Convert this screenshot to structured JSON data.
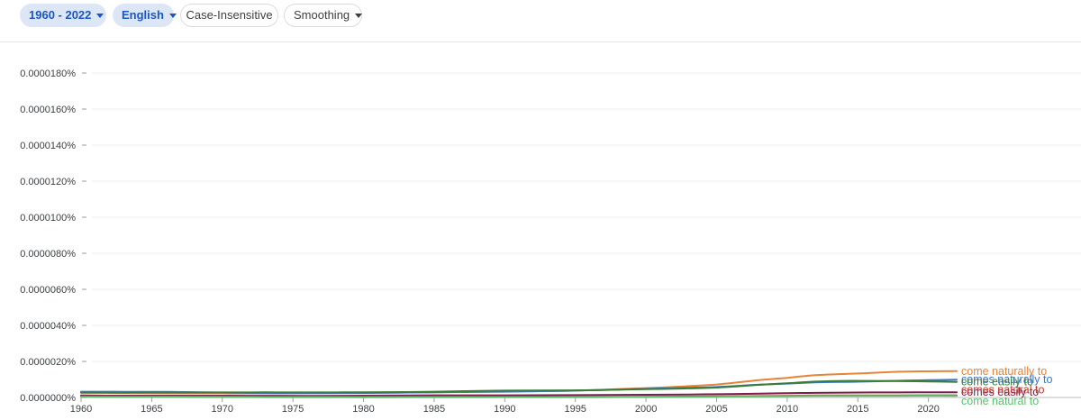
{
  "toolbar": {
    "year_range": "1960 - 2022",
    "corpus": "English",
    "case_insensitive": "Case-Insensitive",
    "smoothing": "Smoothing"
  },
  "chart_data": {
    "type": "line",
    "xlim": [
      1960,
      2022
    ],
    "ylim": [
      0,
      1.8e-07
    ],
    "yticks": [
      "0.0000000%",
      "0.0000020%",
      "0.0000040%",
      "0.0000060%",
      "0.0000080%",
      "0.0000100%",
      "0.0000120%",
      "0.0000140%",
      "0.0000160%",
      "0.0000180%"
    ],
    "xticks": [
      "1960",
      "1965",
      "1970",
      "1975",
      "1980",
      "1985",
      "1990",
      "1995",
      "2000",
      "2005",
      "2010",
      "2015",
      "2020"
    ],
    "grid": true,
    "legend": "end-of-line labels",
    "series": [
      {
        "name": "come naturally to",
        "color": "#e8833a",
        "x": [
          1960,
          1963,
          1966,
          1970,
          1973,
          1976,
          1980,
          1985,
          1990,
          1995,
          2000,
          2002,
          2005,
          2008,
          2010,
          2012,
          2015,
          2018,
          2020,
          2022
        ],
        "y": [
          2.6e-09,
          2.5e-09,
          2.4e-09,
          2.35e-09,
          2.3e-09,
          2.35e-09,
          2.5e-09,
          2.9e-09,
          3.3e-09,
          3.8e-09,
          5.2e-09,
          5.9e-09,
          7.2e-09,
          9.6e-09,
          1.09e-08,
          1.24e-08,
          1.33e-08,
          1.43e-08,
          1.45e-08,
          1.46e-08
        ]
      },
      {
        "name": "comes naturally to",
        "color": "#3c78c9",
        "x": [
          1960,
          1963,
          1966,
          1970,
          1973,
          1976,
          1980,
          1985,
          1990,
          1995,
          2000,
          2002,
          2005,
          2008,
          2010,
          2012,
          2015,
          2018,
          2020,
          2022
        ],
        "y": [
          3.2e-09,
          3.15e-09,
          3.1e-09,
          2.75e-09,
          2.5e-09,
          2.45e-09,
          2.5e-09,
          2.9e-09,
          3.2e-09,
          3.8e-09,
          4.8e-09,
          5.2e-09,
          5.8e-09,
          7.1e-09,
          7.7e-09,
          8.4e-09,
          8.75e-09,
          9.3e-09,
          9.6e-09,
          9.9e-09
        ]
      },
      {
        "name": "come easily to",
        "color": "#3b7d34",
        "x": [
          1960,
          1963,
          1966,
          1970,
          1973,
          1976,
          1980,
          1983,
          1985,
          1990,
          1995,
          2000,
          2002,
          2005,
          2008,
          2010,
          2012,
          2014,
          2016,
          2018,
          2020,
          2022
        ],
        "y": [
          2.7e-09,
          2.72e-09,
          2.75e-09,
          2.8e-09,
          2.85e-09,
          2.82e-09,
          2.88e-09,
          3e-09,
          3.2e-09,
          3.8e-09,
          3.95e-09,
          4.6e-09,
          4.9e-09,
          5.5e-09,
          7e-09,
          7.9e-09,
          8.8e-09,
          9.2e-09,
          9.2e-09,
          9.05e-09,
          8.9e-09,
          8.65e-09
        ]
      },
      {
        "name": "comes easily to",
        "color": "#7c1d4d",
        "x": [
          1960,
          1963,
          1966,
          1970,
          1973,
          1976,
          1980,
          1985,
          1990,
          1995,
          2000,
          2003,
          2005,
          2008,
          2010,
          2012,
          2015,
          2018,
          2020,
          2022
        ],
        "y": [
          1.1e-09,
          1e-09,
          9.8e-10,
          1e-09,
          9.6e-10,
          9.2e-10,
          1e-09,
          1.2e-09,
          1.22e-09,
          1.3e-09,
          1.5e-09,
          1.65e-09,
          1.8e-09,
          2.1e-09,
          2.4e-09,
          2.55e-09,
          2.75e-09,
          2.8e-09,
          2.9e-09,
          2.88e-09
        ]
      },
      {
        "name": "comes natural to",
        "color": "#c0392b",
        "x": [
          1960,
          1963,
          1966,
          1970,
          1973,
          1976,
          1980,
          1985,
          1990,
          1995,
          2000,
          2003,
          2005,
          2008,
          2010,
          2012,
          2015,
          2018,
          2020,
          2022
        ],
        "y": [
          5.5e-10,
          5.2e-10,
          4.5e-10,
          4e-10,
          3.5e-10,
          3.3e-10,
          3.5e-10,
          4e-10,
          3e-10,
          3e-10,
          4e-10,
          5e-10,
          6e-10,
          8e-10,
          9.5e-10,
          1.1e-09,
          1.15e-09,
          1.15e-09,
          1.2e-09,
          1.18e-09
        ]
      },
      {
        "name": "come natural to",
        "color": "#5ac26a",
        "x": [
          1960,
          1963,
          1966,
          1970,
          1973,
          1976,
          1980,
          1985,
          1990,
          1995,
          2000,
          2003,
          2005,
          2008,
          2010,
          2012,
          2015,
          2018,
          2020,
          2022
        ],
        "y": [
          3e-10,
          3.2e-10,
          3.3e-10,
          3e-10,
          2e-10,
          1.8e-10,
          1.5e-10,
          2e-10,
          2e-10,
          2e-10,
          3e-10,
          3.8e-10,
          4.5e-10,
          6.5e-10,
          7.5e-10,
          8.5e-10,
          9e-10,
          9e-10,
          9.5e-10,
          9.2e-10
        ]
      }
    ]
  }
}
